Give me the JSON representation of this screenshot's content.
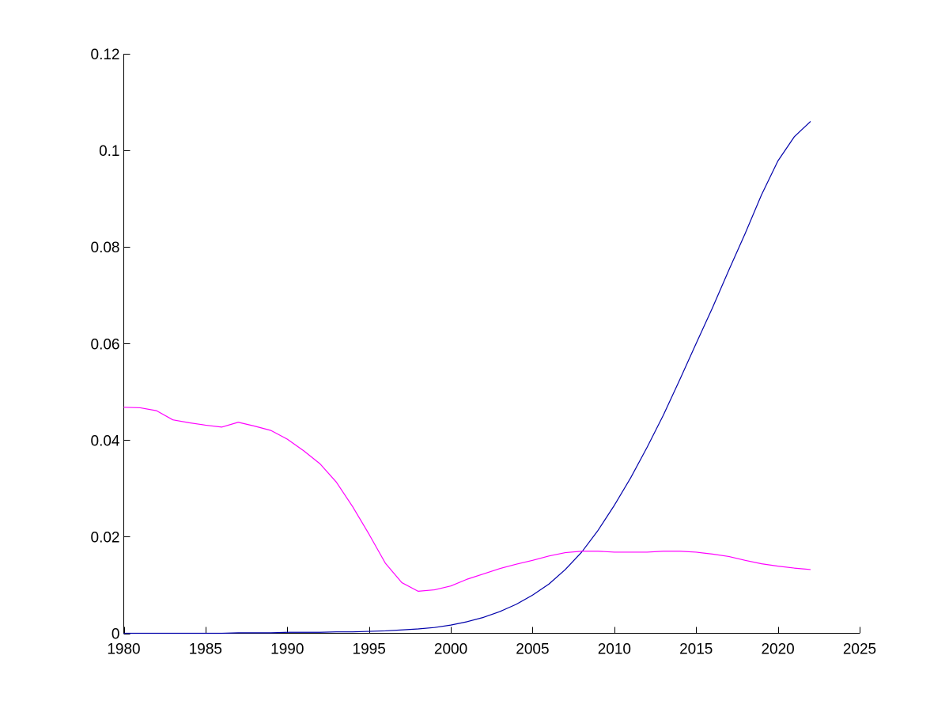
{
  "chart_data": {
    "type": "line",
    "title": "",
    "xlabel": "",
    "ylabel": "",
    "xlim": [
      1980,
      2025
    ],
    "ylim": [
      0,
      0.12
    ],
    "xticks": [
      1980,
      1985,
      1990,
      1995,
      2000,
      2005,
      2010,
      2015,
      2020,
      2025
    ],
    "yticks": [
      0,
      0.02,
      0.04,
      0.06,
      0.08,
      0.1,
      0.12
    ],
    "xtick_labels": [
      "1980",
      "1985",
      "1990",
      "1995",
      "2000",
      "2005",
      "2010",
      "2015",
      "2020",
      "2025"
    ],
    "ytick_labels": [
      "0",
      "0.02",
      "0.04",
      "0.06",
      "0.08",
      "0.1",
      "0.12"
    ],
    "grid": false,
    "legend": "none",
    "x": [
      1980,
      1981,
      1982,
      1983,
      1984,
      1985,
      1986,
      1987,
      1988,
      1989,
      1990,
      1991,
      1992,
      1993,
      1994,
      1995,
      1996,
      1997,
      1998,
      1999,
      2000,
      2001,
      2002,
      2003,
      2004,
      2005,
      2006,
      2007,
      2008,
      2009,
      2010,
      2011,
      2012,
      2013,
      2014,
      2015,
      2016,
      2017,
      2018,
      2019,
      2020,
      2021,
      2022
    ],
    "series": [
      {
        "color": "#0000aa",
        "values": [
          0.0,
          0.0,
          0.0,
          0.0,
          0.0,
          0.0,
          0.0,
          0.0001,
          0.0001,
          0.0001,
          0.0002,
          0.0002,
          0.0002,
          0.0003,
          0.0003,
          0.0004,
          0.0005,
          0.0007,
          0.0009,
          0.0012,
          0.0017,
          0.0024,
          0.0033,
          0.0045,
          0.006,
          0.0079,
          0.0102,
          0.0132,
          0.0168,
          0.0213,
          0.0265,
          0.0322,
          0.0385,
          0.0452,
          0.0525,
          0.06,
          0.0674,
          0.0752,
          0.0828,
          0.0908,
          0.0978,
          0.1028,
          0.106
        ]
      },
      {
        "color": "#ff00ff",
        "values": [
          0.0468,
          0.0467,
          0.0461,
          0.0442,
          0.0436,
          0.0431,
          0.0427,
          0.0437,
          0.0429,
          0.042,
          0.0402,
          0.0378,
          0.0351,
          0.0313,
          0.0262,
          0.0205,
          0.0145,
          0.0105,
          0.0087,
          0.009,
          0.0098,
          0.0112,
          0.0123,
          0.0134,
          0.0143,
          0.0151,
          0.016,
          0.0167,
          0.017,
          0.017,
          0.0168,
          0.0168,
          0.0168,
          0.017,
          0.017,
          0.0168,
          0.0164,
          0.0159,
          0.0151,
          0.0144,
          0.0139,
          0.0135,
          0.0132
        ]
      }
    ]
  }
}
